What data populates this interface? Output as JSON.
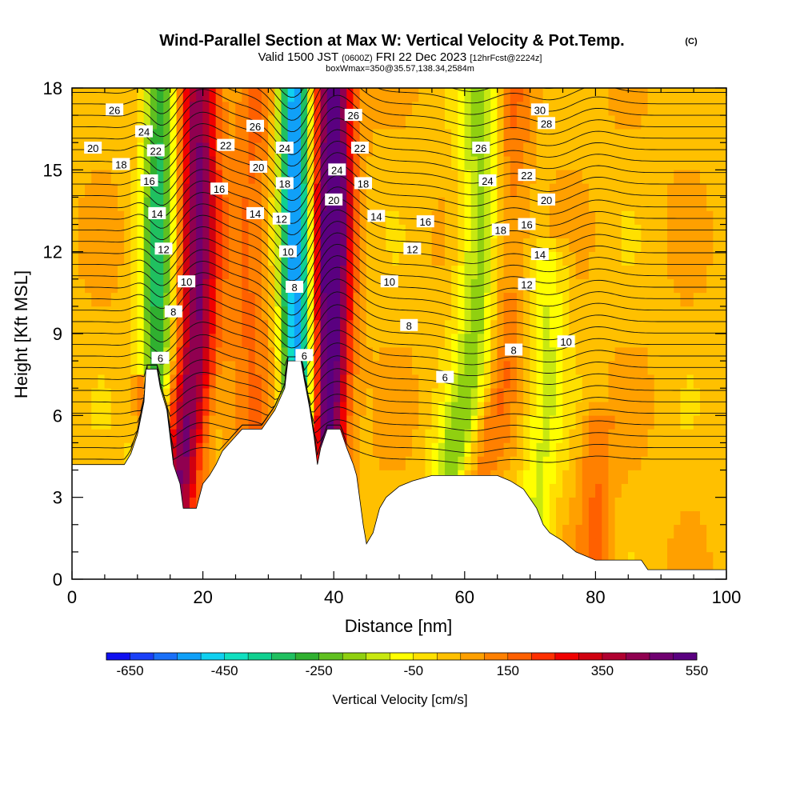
{
  "chart_data": {
    "type": "heatmap",
    "title": "Wind-Parallel Section at Max W: Vertical Velocity & Pot.Temp.",
    "title_mark": "(C)",
    "subtitle": {
      "prefix": "Valid 1500 JST",
      "utc": "(0600Z)",
      "date": "FRI 22 Dec 2023",
      "forecast": "[12hrFcst@2224z]"
    },
    "subtitle2": "boxWmax=350@35.57,138.34,2584m",
    "xlabel": "Distance [nm]",
    "ylabel": "Height [Kft MSL]",
    "xlim": [
      0,
      100
    ],
    "ylim": [
      0,
      18
    ],
    "x_ticks": [
      "0",
      "20",
      "40",
      "60",
      "80",
      "100"
    ],
    "y_ticks": [
      "0",
      "3",
      "6",
      "9",
      "12",
      "15",
      "18"
    ],
    "colorbar": {
      "label": "Vertical Velocity [cm/s]",
      "tick_labels": [
        "-650",
        "-450",
        "-250",
        "-50",
        "150",
        "350",
        "550"
      ],
      "colors": [
        "#1010f0",
        "#1a40f8",
        "#1a70f8",
        "#10a0f8",
        "#10d0f0",
        "#10e0c0",
        "#10d090",
        "#20c060",
        "#30b030",
        "#60c020",
        "#90d010",
        "#c8e810",
        "#ffff00",
        "#ffe000",
        "#ffc000",
        "#ffa000",
        "#ff8000",
        "#ff6000",
        "#ff3000",
        "#f00000",
        "#d00010",
        "#b00030",
        "#900050",
        "#700070",
        "#5a0080"
      ]
    },
    "terrain_kft": [
      [
        0,
        4.2
      ],
      [
        8,
        4.2
      ],
      [
        9,
        4.6
      ],
      [
        10,
        5.3
      ],
      [
        11,
        6.5
      ],
      [
        11.3,
        7.7
      ],
      [
        13,
        7.7
      ],
      [
        13.5,
        7.0
      ],
      [
        14.5,
        6.2
      ],
      [
        15.5,
        4.2
      ],
      [
        16.5,
        3.5
      ],
      [
        17,
        2.6
      ],
      [
        19,
        2.6
      ],
      [
        20,
        3.5
      ],
      [
        21,
        3.8
      ],
      [
        22,
        4.2
      ],
      [
        23,
        4.7
      ],
      [
        24.5,
        5.1
      ],
      [
        26,
        5.5
      ],
      [
        29,
        5.5
      ],
      [
        31,
        6.2
      ],
      [
        32.5,
        7.0
      ],
      [
        33,
        8.0
      ],
      [
        35,
        8.0
      ],
      [
        35.5,
        7.3
      ],
      [
        36.3,
        6.3
      ],
      [
        37,
        5.2
      ],
      [
        37.5,
        4.2
      ],
      [
        38,
        4.8
      ],
      [
        39,
        5.5
      ],
      [
        41,
        5.5
      ],
      [
        42,
        4.8
      ],
      [
        43,
        4.2
      ],
      [
        43.5,
        3.8
      ],
      [
        44.5,
        2.0
      ],
      [
        45,
        1.3
      ],
      [
        46,
        1.7
      ],
      [
        47,
        2.6
      ],
      [
        48,
        3.0
      ],
      [
        50,
        3.4
      ],
      [
        52,
        3.6
      ],
      [
        55,
        3.8
      ],
      [
        65,
        3.8
      ],
      [
        67,
        3.6
      ],
      [
        69,
        3.3
      ],
      [
        71,
        2.6
      ],
      [
        72,
        2.0
      ],
      [
        73,
        1.7
      ],
      [
        75,
        1.4
      ],
      [
        77,
        1.0
      ],
      [
        80,
        0.7
      ],
      [
        87,
        0.7
      ],
      [
        88,
        0.35
      ],
      [
        100,
        0.35
      ]
    ],
    "series": [
      {
        "anchor_x": 10.5,
        "center_x": 13,
        "top_x": 13.5,
        "height_kft": 18,
        "peak_cms": -350,
        "width_nm": 2.5
      },
      {
        "anchor_x": 14.5,
        "center_x": 19,
        "top_x": 19.5,
        "height_kft": 18,
        "peak_cms": 420,
        "width_nm": 3.0
      },
      {
        "anchor_x": 11.0,
        "center_x": 11,
        "top_x": 11.0,
        "height_kft": 7.2,
        "peak_cms": 280,
        "width_nm": 1.5
      },
      {
        "anchor_x": 36.0,
        "center_x": 34.5,
        "top_x": 34.0,
        "height_kft": 18,
        "peak_cms": -600,
        "width_nm": 2.5
      },
      {
        "anchor_x": 37.5,
        "center_x": 39.5,
        "top_x": 40.0,
        "height_kft": 18,
        "peak_cms": 560,
        "width_nm": 3.0
      },
      {
        "anchor_x": 27.0,
        "center_x": 27,
        "top_x": 28.0,
        "height_kft": 18,
        "peak_cms": 120,
        "width_nm": 3.5
      },
      {
        "anchor_x": 55.0,
        "center_x": 62,
        "top_x": 63.0,
        "height_kft": 18,
        "peak_cms": -220,
        "width_nm": 3.5
      },
      {
        "anchor_x": 58.0,
        "center_x": 66,
        "top_x": 67.0,
        "height_kft": 18,
        "peak_cms": 140,
        "width_nm": 3.0
      },
      {
        "anchor_x": 70.0,
        "center_x": 72,
        "top_x": 73.0,
        "height_kft": 12,
        "peak_cms": -140,
        "width_nm": 3.0
      },
      {
        "anchor_x": 80.0,
        "center_x": 80,
        "top_x": 80.0,
        "height_kft": 6.0,
        "peak_cms": 120,
        "width_nm": 2.5
      }
    ],
    "isotherm_labels": [
      {
        "text": "26",
        "x": 6.5,
        "y": 17.2
      },
      {
        "text": "24",
        "x": 11.0,
        "y": 16.4
      },
      {
        "text": "20",
        "x": 3.2,
        "y": 15.8
      },
      {
        "text": "22",
        "x": 12.8,
        "y": 15.7
      },
      {
        "text": "18",
        "x": 7.5,
        "y": 15.2
      },
      {
        "text": "16",
        "x": 11.8,
        "y": 14.6
      },
      {
        "text": "14",
        "x": 13.0,
        "y": 13.4
      },
      {
        "text": "12",
        "x": 14.0,
        "y": 12.1
      },
      {
        "text": "10",
        "x": 17.5,
        "y": 10.9
      },
      {
        "text": "8",
        "x": 15.5,
        "y": 9.8
      },
      {
        "text": "6",
        "x": 13.5,
        "y": 8.1
      },
      {
        "text": "26",
        "x": 28.0,
        "y": 16.6
      },
      {
        "text": "22",
        "x": 23.5,
        "y": 15.9
      },
      {
        "text": "20",
        "x": 28.5,
        "y": 15.1
      },
      {
        "text": "16",
        "x": 22.5,
        "y": 14.3
      },
      {
        "text": "14",
        "x": 28.0,
        "y": 13.4
      },
      {
        "text": "24",
        "x": 32.5,
        "y": 15.8
      },
      {
        "text": "18",
        "x": 32.5,
        "y": 14.5
      },
      {
        "text": "12",
        "x": 32.0,
        "y": 13.2
      },
      {
        "text": "10",
        "x": 33.0,
        "y": 12.0
      },
      {
        "text": "8",
        "x": 34.0,
        "y": 10.7
      },
      {
        "text": "6",
        "x": 35.5,
        "y": 8.2
      },
      {
        "text": "26",
        "x": 43.0,
        "y": 17.0
      },
      {
        "text": "22",
        "x": 44.0,
        "y": 15.8
      },
      {
        "text": "24",
        "x": 40.5,
        "y": 15.0
      },
      {
        "text": "18",
        "x": 44.5,
        "y": 14.5
      },
      {
        "text": "20",
        "x": 40.0,
        "y": 13.9
      },
      {
        "text": "14",
        "x": 46.5,
        "y": 13.3
      },
      {
        "text": "16",
        "x": 54.0,
        "y": 13.1
      },
      {
        "text": "12",
        "x": 52.0,
        "y": 12.1
      },
      {
        "text": "10",
        "x": 48.5,
        "y": 10.9
      },
      {
        "text": "8",
        "x": 51.5,
        "y": 9.3
      },
      {
        "text": "6",
        "x": 57.0,
        "y": 7.4
      },
      {
        "text": "30",
        "x": 71.5,
        "y": 17.2
      },
      {
        "text": "28",
        "x": 72.5,
        "y": 16.7
      },
      {
        "text": "26",
        "x": 62.5,
        "y": 15.8
      },
      {
        "text": "24",
        "x": 63.5,
        "y": 14.6
      },
      {
        "text": "22",
        "x": 69.5,
        "y": 14.8
      },
      {
        "text": "20",
        "x": 72.5,
        "y": 13.9
      },
      {
        "text": "18",
        "x": 65.5,
        "y": 12.8
      },
      {
        "text": "16",
        "x": 69.5,
        "y": 13.0
      },
      {
        "text": "14",
        "x": 71.5,
        "y": 11.9
      },
      {
        "text": "12",
        "x": 69.5,
        "y": 10.8
      },
      {
        "text": "10",
        "x": 75.5,
        "y": 8.7
      },
      {
        "text": "8",
        "x": 67.5,
        "y": 8.4
      }
    ]
  }
}
